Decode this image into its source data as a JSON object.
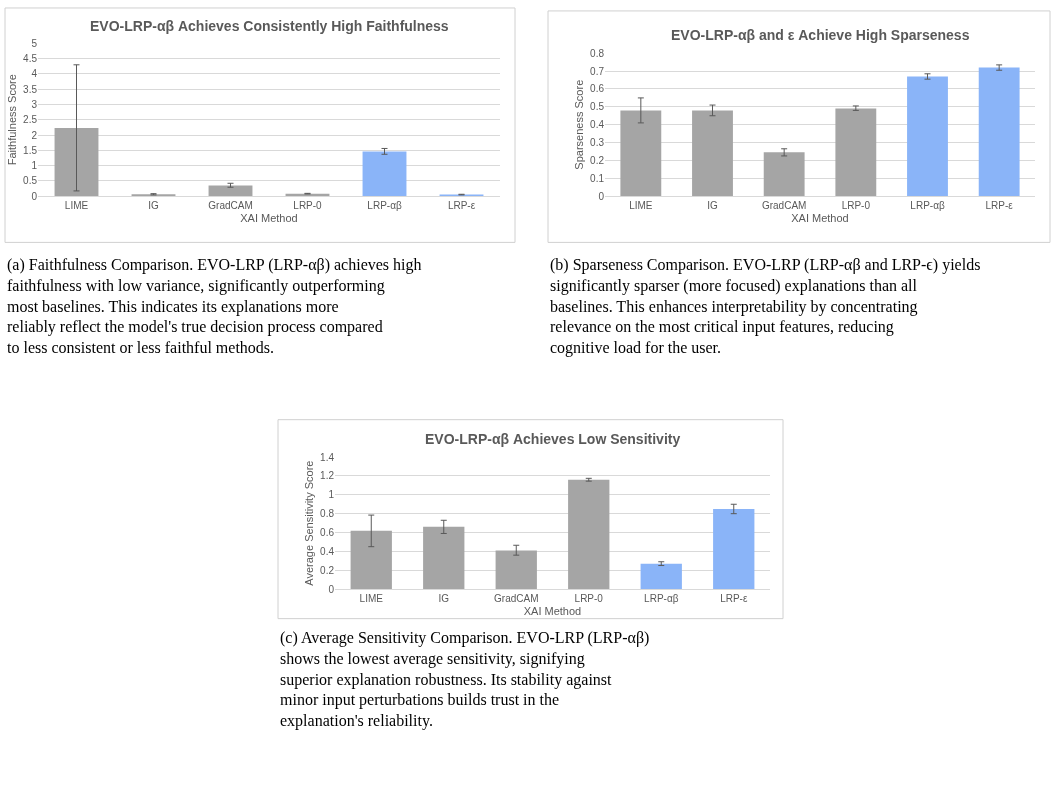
{
  "chart_data": [
    {
      "type": "bar",
      "title": "EVO-LRP-αβ Achieves Consistently High Faithfulness",
      "xlabel": "XAI Method",
      "ylabel": "Faithfulness Score",
      "categories": [
        "LIME",
        "IG",
        "GradCAM",
        "LRP-0",
        "LRP-αβ",
        "LRP-ε"
      ],
      "values": [
        2.23,
        0.06,
        0.35,
        0.08,
        1.46,
        0.05
      ],
      "errors": [
        [
          0.17,
          4.3
        ],
        [
          0.04,
          0.08
        ],
        [
          0.29,
          0.42
        ],
        [
          0.07,
          0.09
        ],
        [
          1.37,
          1.56
        ],
        [
          0.04,
          0.06
        ]
      ],
      "colors": [
        "#a5a5a5",
        "#a5a5a5",
        "#a5a5a5",
        "#a5a5a5",
        "#8ab4f8",
        "#8ab4f8"
      ],
      "ylim": [
        0,
        5
      ],
      "yticks": [
        0,
        0.5,
        1,
        1.5,
        2,
        2.5,
        3,
        3.5,
        4,
        4.5,
        5
      ],
      "grid": "y",
      "annotations": [
        "(a) Faithfulness Comparison. EVO-LRP (LRP-αβ) achieves high faithfulness with low variance, significantly outperforming most baselines. This indicates its explanations more reliably reflect the model's true decision process compared to less consistent or less faithful methods."
      ]
    },
    {
      "type": "bar",
      "title": "EVO-LRP-αβ and ε Achieve High Sparseness",
      "xlabel": "XAI Method",
      "ylabel": "Sparseness Score",
      "categories": [
        "LIME",
        "IG",
        "GradCAM",
        "LRP-0",
        "LRP-αβ",
        "LRP-ε"
      ],
      "values": [
        0.48,
        0.48,
        0.245,
        0.49,
        0.67,
        0.72
      ],
      "errors": [
        [
          0.41,
          0.55
        ],
        [
          0.45,
          0.51
        ],
        [
          0.225,
          0.265
        ],
        [
          0.48,
          0.505
        ],
        [
          0.655,
          0.685
        ],
        [
          0.705,
          0.735
        ]
      ],
      "colors": [
        "#a5a5a5",
        "#a5a5a5",
        "#a5a5a5",
        "#a5a5a5",
        "#8ab4f8",
        "#8ab4f8"
      ],
      "ylim": [
        0,
        0.8
      ],
      "yticks": [
        0,
        0.1,
        0.2,
        0.3,
        0.4,
        0.5,
        0.6,
        0.7,
        0.8
      ],
      "grid": "y",
      "annotations": [
        "(b) Sparseness Comparison. EVO-LRP (LRP-αβ and LRP-ϵ) yields significantly sparser (more focused) explanations than all baselines. This enhances interpretability by concentrating relevance on the most critical input features, reducing cognitive load for the user."
      ]
    },
    {
      "type": "bar",
      "title": "EVO-LRP-αβ Achieves Low Sensitivity",
      "xlabel": "XAI Method",
      "ylabel": "Average Sensitivity Score",
      "categories": [
        "LIME",
        "IG",
        "GradCAM",
        "LRP-0",
        "LRP-αβ",
        "LRP-ε"
      ],
      "values": [
        0.62,
        0.66,
        0.41,
        1.16,
        0.27,
        0.85
      ],
      "errors": [
        [
          0.45,
          0.785
        ],
        [
          0.59,
          0.73
        ],
        [
          0.36,
          0.465
        ],
        [
          1.145,
          1.175
        ],
        [
          0.25,
          0.29
        ],
        [
          0.8,
          0.9
        ]
      ],
      "colors": [
        "#a5a5a5",
        "#a5a5a5",
        "#a5a5a5",
        "#a5a5a5",
        "#8ab4f8",
        "#8ab4f8"
      ],
      "ylim": [
        0,
        1.4
      ],
      "yticks": [
        0,
        0.2,
        0.4,
        0.6,
        0.8,
        1,
        1.2,
        1.4
      ],
      "grid": "y",
      "annotations": [
        "(c) Average Sensitivity Comparison. EVO-LRP (LRP-αβ) shows the lowest average sensitivity, signifying superior explanation robustness. Its stability against minor input perturbations builds trust in the explanation's reliability."
      ]
    }
  ]
}
